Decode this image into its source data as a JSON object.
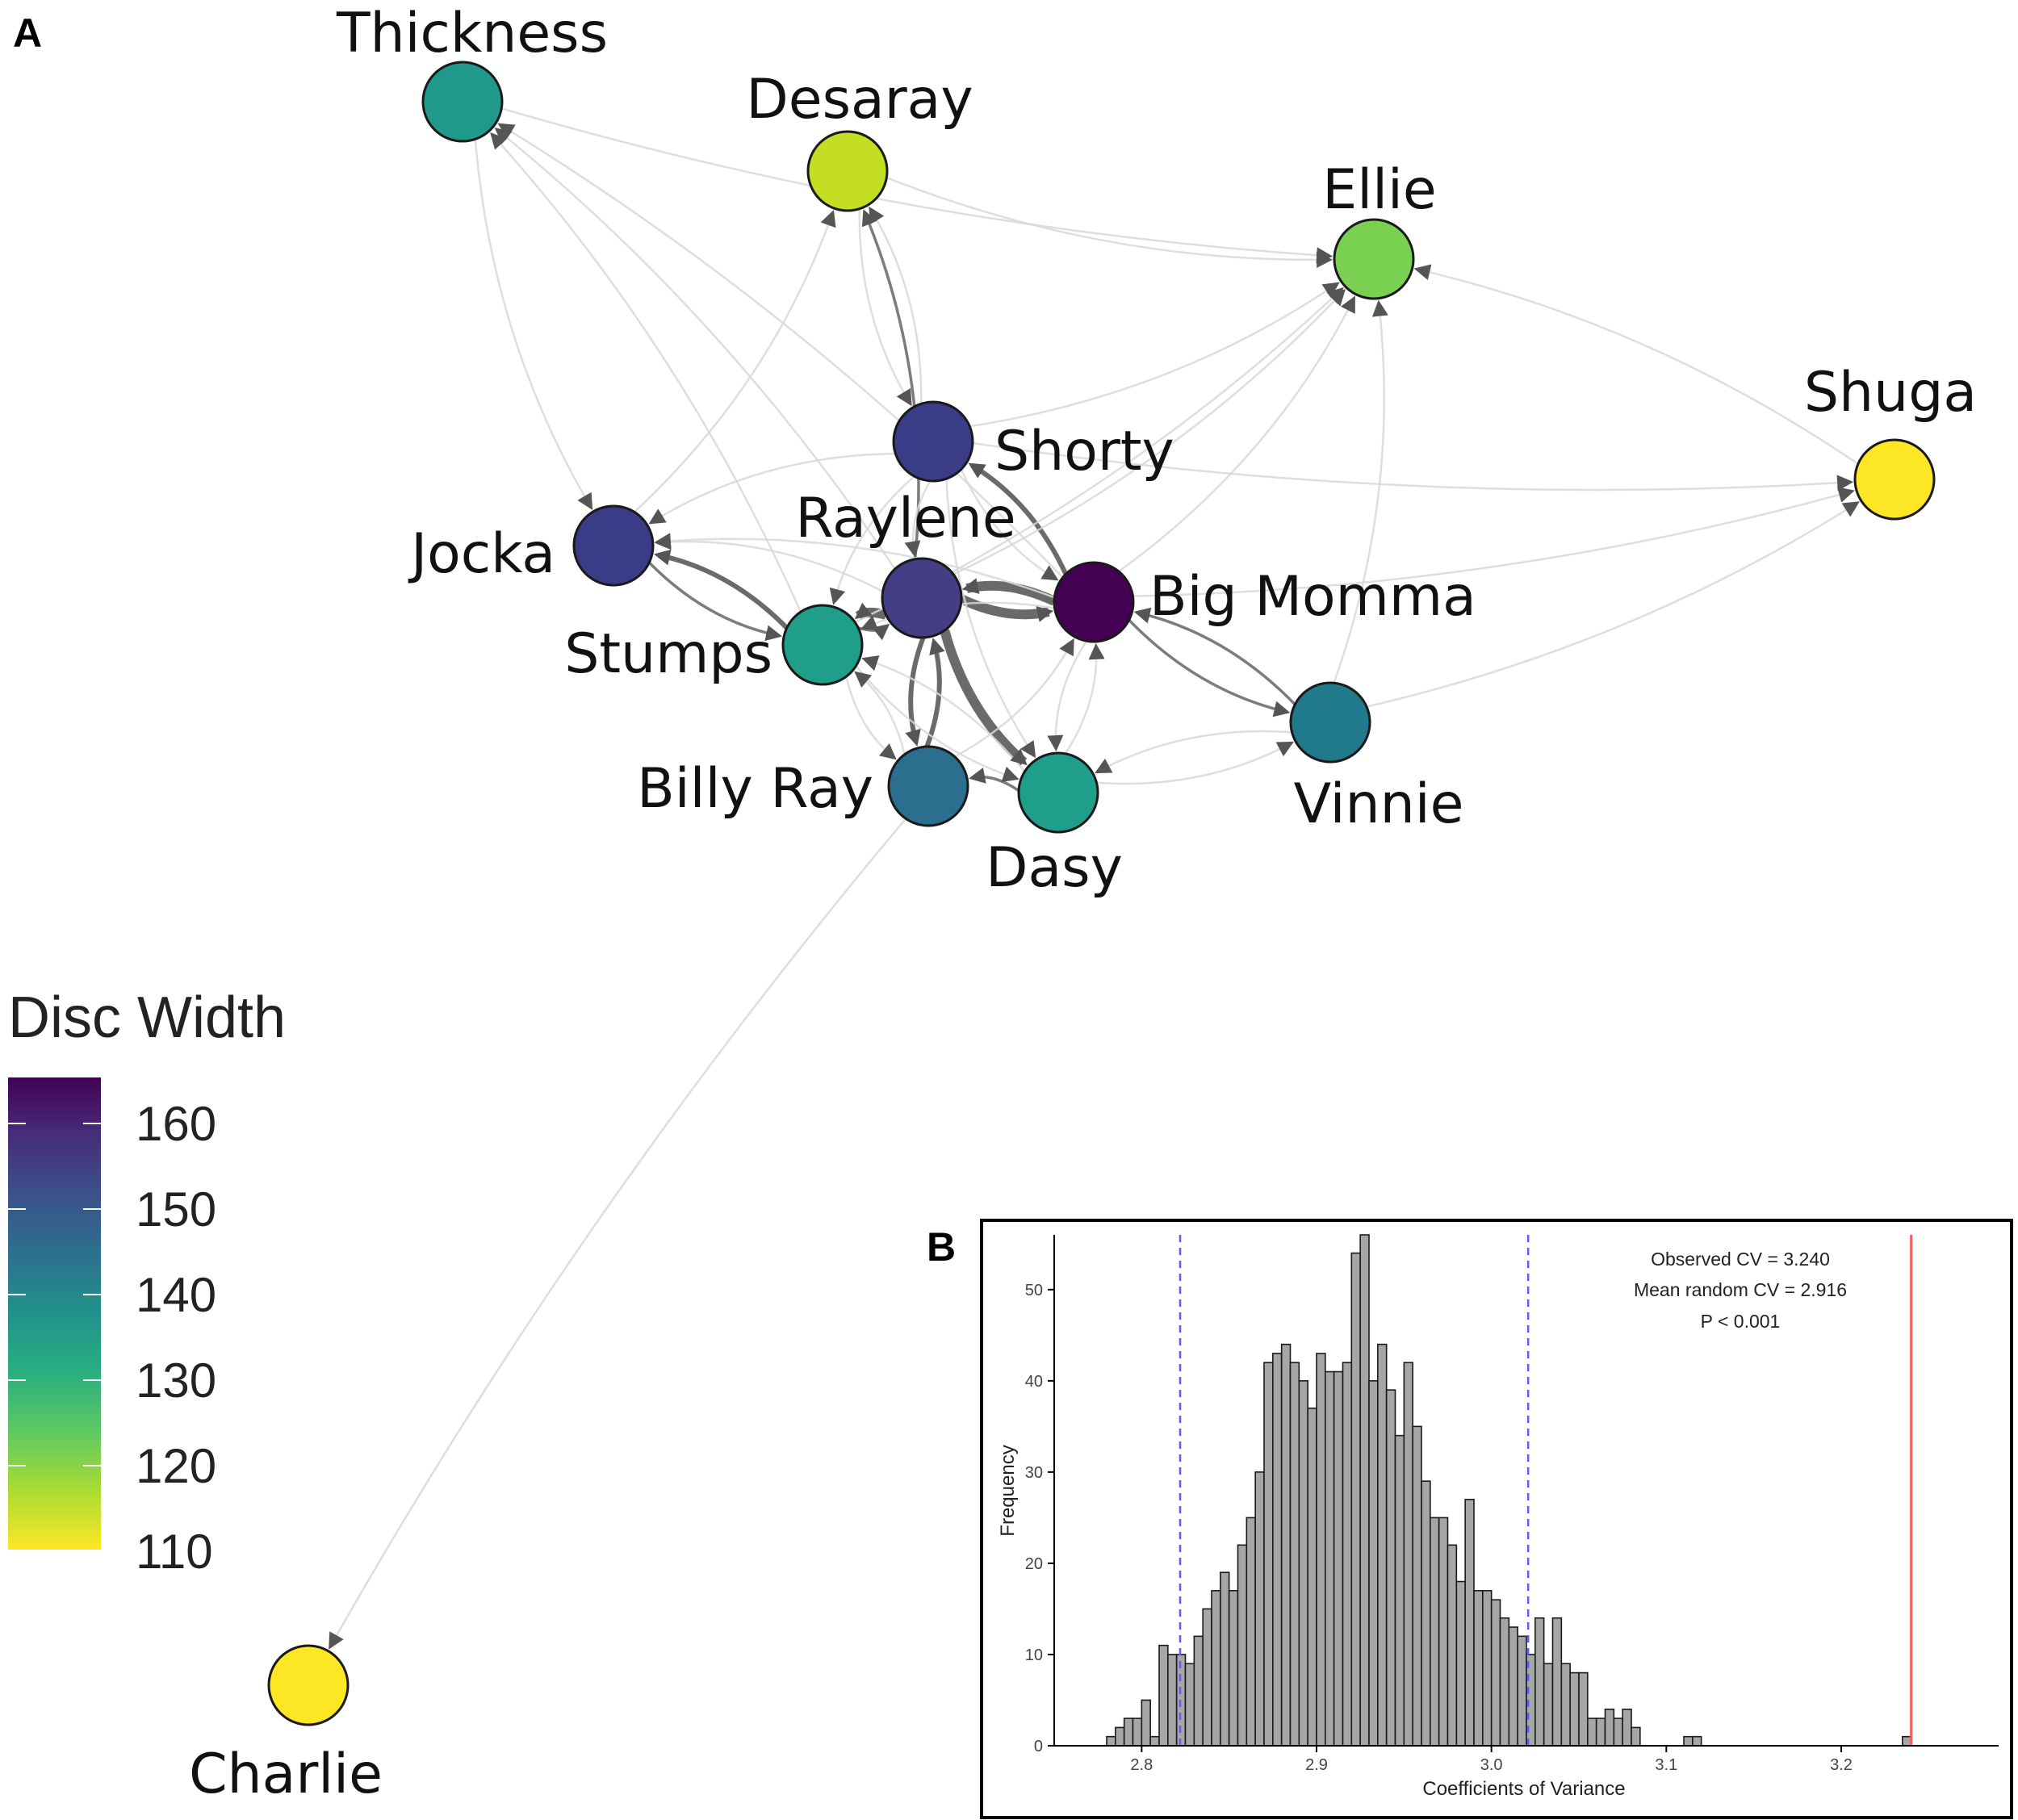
{
  "panel_a": {
    "letter": "A",
    "legend": {
      "title": "Disc Width",
      "ticks": [
        "160",
        "150",
        "140",
        "130",
        "120",
        "110"
      ],
      "colormap": "viridis"
    },
    "nodes": [
      {
        "id": "thickness",
        "label": "Thickness",
        "disc_width": 137,
        "color": "#1f9a8a"
      },
      {
        "id": "desaray",
        "label": "Desaray",
        "disc_width": 114,
        "color": "#c4df23"
      },
      {
        "id": "ellie",
        "label": "Ellie",
        "disc_width": 124,
        "color": "#7ad151"
      },
      {
        "id": "shuga",
        "label": "Shuga",
        "disc_width": 110,
        "color": "#fde725"
      },
      {
        "id": "shorty",
        "label": "Shorty",
        "disc_width": 156,
        "color": "#3b3c87"
      },
      {
        "id": "jocka",
        "label": "Jocka",
        "disc_width": 156,
        "color": "#3b3c87"
      },
      {
        "id": "raylene",
        "label": "Raylene",
        "disc_width": 155,
        "color": "#433e85"
      },
      {
        "id": "big_momma",
        "label": "Big Momma",
        "disc_width": 164,
        "color": "#440154"
      },
      {
        "id": "stumps",
        "label": "Stumps",
        "disc_width": 136,
        "color": "#1f9e89"
      },
      {
        "id": "vinnie",
        "label": "Vinnie",
        "disc_width": 142,
        "color": "#21798c"
      },
      {
        "id": "billy_ray",
        "label": "Billy Ray",
        "disc_width": 146,
        "color": "#2c6e8e"
      },
      {
        "id": "dasy",
        "label": "Dasy",
        "disc_width": 136,
        "color": "#1f9e89"
      },
      {
        "id": "charlie",
        "label": "Charlie",
        "disc_width": 110,
        "color": "#fde725"
      }
    ],
    "edges": [
      {
        "from": "raylene",
        "to": "big_momma",
        "weight": 5
      },
      {
        "from": "big_momma",
        "to": "raylene",
        "weight": 5
      },
      {
        "from": "raylene",
        "to": "stumps",
        "weight": 5
      },
      {
        "from": "raylene",
        "to": "dasy",
        "weight": 5
      },
      {
        "from": "raylene",
        "to": "billy_ray",
        "weight": 3
      },
      {
        "from": "billy_ray",
        "to": "raylene",
        "weight": 3
      },
      {
        "from": "stumps",
        "to": "jocka",
        "weight": 3
      },
      {
        "from": "jocka",
        "to": "stumps",
        "weight": 2
      },
      {
        "from": "big_momma",
        "to": "shorty",
        "weight": 3
      },
      {
        "from": "big_momma",
        "to": "vinnie",
        "weight": 2
      },
      {
        "from": "vinnie",
        "to": "big_momma",
        "weight": 2
      },
      {
        "from": "raylene",
        "to": "desaray",
        "weight": 2
      },
      {
        "from": "desaray",
        "to": "shorty",
        "weight": 1
      },
      {
        "from": "dasy",
        "to": "billy_ray",
        "weight": 2
      },
      {
        "from": "stumps",
        "to": "raylene",
        "weight": 2
      },
      {
        "from": "billy_ray",
        "to": "stumps",
        "weight": 1
      },
      {
        "from": "stumps",
        "to": "billy_ray",
        "weight": 1
      },
      {
        "from": "raylene",
        "to": "jocka",
        "weight": 1
      },
      {
        "from": "shorty",
        "to": "raylene",
        "weight": 1
      },
      {
        "from": "dasy",
        "to": "big_momma",
        "weight": 1
      },
      {
        "from": "billy_ray",
        "to": "big_momma",
        "weight": 1
      },
      {
        "from": "big_momma",
        "to": "dasy",
        "weight": 1
      },
      {
        "from": "stumps",
        "to": "dasy",
        "weight": 1
      },
      {
        "from": "raylene",
        "to": "thickness",
        "weight": 1
      },
      {
        "from": "big_momma",
        "to": "thickness",
        "weight": 1
      },
      {
        "from": "thickness",
        "to": "jocka",
        "weight": 1
      },
      {
        "from": "stumps",
        "to": "thickness",
        "weight": 1
      },
      {
        "from": "jocka",
        "to": "desaray",
        "weight": 1
      },
      {
        "from": "desaray",
        "to": "ellie",
        "weight": 1
      },
      {
        "from": "thickness",
        "to": "ellie",
        "weight": 1
      },
      {
        "from": "shorty",
        "to": "ellie",
        "weight": 1
      },
      {
        "from": "raylene",
        "to": "ellie",
        "weight": 1
      },
      {
        "from": "big_momma",
        "to": "ellie",
        "weight": 1
      },
      {
        "from": "stumps",
        "to": "ellie",
        "weight": 1
      },
      {
        "from": "vinnie",
        "to": "ellie",
        "weight": 1
      },
      {
        "from": "shuga",
        "to": "ellie",
        "weight": 1
      },
      {
        "from": "big_momma",
        "to": "shuga",
        "weight": 1
      },
      {
        "from": "vinnie",
        "to": "shuga",
        "weight": 1
      },
      {
        "from": "shorty",
        "to": "shuga",
        "weight": 1
      },
      {
        "from": "dasy",
        "to": "vinnie",
        "weight": 1
      },
      {
        "from": "vinnie",
        "to": "dasy",
        "weight": 1
      },
      {
        "from": "billy_ray",
        "to": "charlie",
        "weight": 1
      },
      {
        "from": "shorty",
        "to": "jocka",
        "weight": 1
      },
      {
        "from": "big_momma",
        "to": "jocka",
        "weight": 1
      },
      {
        "from": "dasy",
        "to": "stumps",
        "weight": 1
      },
      {
        "from": "big_momma",
        "to": "stumps",
        "weight": 1
      },
      {
        "from": "shorty",
        "to": "stumps",
        "weight": 1
      },
      {
        "from": "shorty",
        "to": "desaray",
        "weight": 1
      },
      {
        "from": "shorty",
        "to": "dasy",
        "weight": 1
      },
      {
        "from": "shorty",
        "to": "big_momma",
        "weight": 1
      }
    ]
  },
  "panel_b": {
    "letter": "B",
    "chart_data": {
      "type": "bar",
      "xlabel": "Coefficients of Variance",
      "ylabel": "Frequency",
      "xlim": [
        2.75,
        3.29
      ],
      "ylim": [
        0,
        56
      ],
      "xticks": [
        "2.8",
        "2.9",
        "3.0",
        "3.1",
        "3.2"
      ],
      "yticks": [
        "0",
        "10",
        "20",
        "30",
        "40",
        "50"
      ],
      "bin_start": 2.78,
      "bin_width": 0.005,
      "counts": [
        1,
        2,
        3,
        3,
        5,
        1,
        11,
        10,
        10,
        9,
        12,
        15,
        17,
        19,
        17,
        22,
        25,
        30,
        42,
        43,
        44,
        42,
        40,
        37,
        43,
        41,
        41,
        42,
        54,
        56,
        40,
        44,
        39,
        34,
        42,
        35,
        29,
        25,
        25,
        22,
        18,
        27,
        17,
        17,
        16,
        14,
        13,
        12,
        10,
        14,
        9,
        14,
        9,
        8,
        8,
        3,
        3,
        4,
        3,
        4,
        2,
        0,
        0,
        0,
        0,
        0,
        1,
        1,
        0,
        0,
        0,
        0,
        0,
        0,
        0,
        0,
        0,
        0,
        0,
        0,
        0,
        0,
        0,
        0,
        0,
        0,
        0,
        0,
        0,
        0,
        0,
        1
      ],
      "ci_lines": [
        2.822,
        3.021
      ],
      "ci_color": "#5b5bff",
      "observed_line": 3.24,
      "observed_color": "#ff5a5a",
      "annotations": [
        "Observed CV = 3.240",
        "Mean random CV = 2.916",
        "P < 0.001"
      ]
    }
  }
}
